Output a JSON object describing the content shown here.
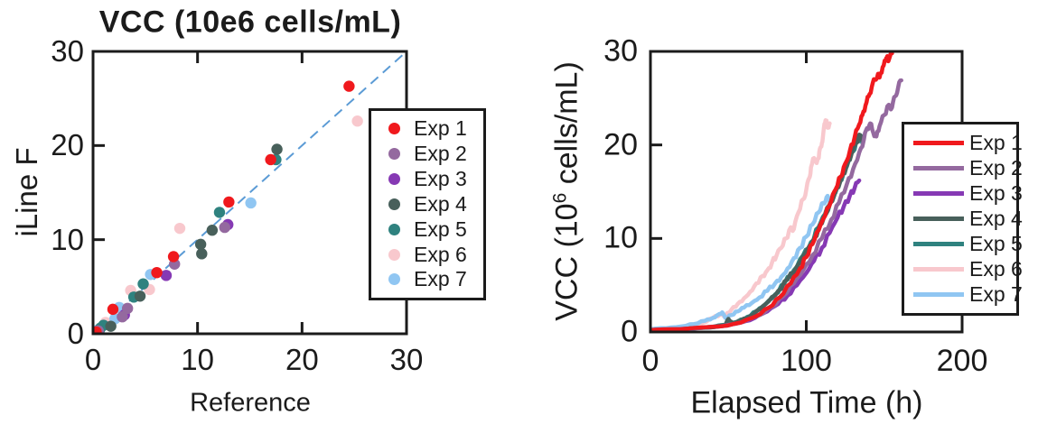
{
  "figure": {
    "background": "#ffffff",
    "ink_color": "#1b1b1b"
  },
  "chart_data": [
    {
      "type": "scatter",
      "title": "VCC (10e6 cells/mL)",
      "xlabel": "Reference",
      "ylabel": "iLine F",
      "xlim": [
        0,
        30
      ],
      "ylim": [
        0,
        30
      ],
      "xticks": [
        "0",
        "10",
        "20",
        "30"
      ],
      "yticks": [
        "0",
        "10",
        "20",
        "30"
      ],
      "xtick_values": [
        0,
        10,
        20,
        30
      ],
      "ytick_values": [
        0,
        10,
        20,
        30
      ],
      "grid": false,
      "legend_position": "right-overlapping-axis",
      "identity_line": {
        "show": true,
        "color": "#5b9bd5",
        "style": "dashed",
        "from": [
          0,
          0
        ],
        "to": [
          30,
          30
        ]
      },
      "series": [
        {
          "name": "Exp 1",
          "color": "#f0191d",
          "points": [
            [
              0.3,
              0.2
            ],
            [
              1.9,
              2.6
            ],
            [
              6.1,
              6.5
            ],
            [
              7.7,
              8.2
            ],
            [
              13.0,
              14.0
            ],
            [
              17.0,
              18.5
            ],
            [
              24.5,
              26.3
            ]
          ]
        },
        {
          "name": "Exp 2",
          "color": "#94699f",
          "points": [
            [
              0.5,
              0.3
            ],
            [
              2.8,
              1.8
            ],
            [
              3.3,
              2.7
            ],
            [
              7.8,
              7.4
            ],
            [
              12.6,
              11.3
            ]
          ]
        },
        {
          "name": "Exp 3",
          "color": "#8639b4",
          "points": [
            [
              0.6,
              0.4
            ],
            [
              3.0,
              2.0
            ],
            [
              7.0,
              6.2
            ],
            [
              12.9,
              11.6
            ]
          ]
        },
        {
          "name": "Exp 4",
          "color": "#48605b",
          "points": [
            [
              0.4,
              0.2
            ],
            [
              1.7,
              0.8
            ],
            [
              4.5,
              4.0
            ],
            [
              10.3,
              9.5
            ],
            [
              10.4,
              8.5
            ],
            [
              11.4,
              11.0
            ],
            [
              17.6,
              19.6
            ]
          ]
        },
        {
          "name": "Exp 5",
          "color": "#2f827f",
          "points": [
            [
              0.7,
              0.6
            ],
            [
              1.0,
              0.9
            ],
            [
              3.9,
              3.9
            ],
            [
              4.8,
              5.3
            ],
            [
              12.1,
              12.9
            ],
            [
              17.5,
              18.5
            ]
          ]
        },
        {
          "name": "Exp 6",
          "color": "#f8c8cd",
          "points": [
            [
              0.6,
              0.4
            ],
            [
              1.2,
              1.2
            ],
            [
              3.6,
              4.6
            ],
            [
              5.4,
              4.7
            ],
            [
              8.3,
              11.2
            ],
            [
              25.3,
              22.6
            ]
          ]
        },
        {
          "name": "Exp 7",
          "color": "#90c6f2",
          "points": [
            [
              0.2,
              0.3
            ],
            [
              0.5,
              0.4
            ],
            [
              2.1,
              1.6
            ],
            [
              2.5,
              2.8
            ],
            [
              5.5,
              6.3
            ],
            [
              15.1,
              13.9
            ]
          ]
        }
      ]
    },
    {
      "type": "line",
      "title": "",
      "xlabel": "Elapsed Time (h)",
      "ylabel_prefix": "VCC (10",
      "ylabel_sup": "6",
      "ylabel_suffix": " cells/mL)",
      "xlim": [
        0,
        200
      ],
      "ylim": [
        0,
        30
      ],
      "xticks": [
        "0",
        "100",
        "200"
      ],
      "yticks": [
        "0",
        "10",
        "20",
        "30"
      ],
      "xtick_values": [
        0,
        100,
        200
      ],
      "ytick_values": [
        0,
        10,
        20,
        30
      ],
      "grid": false,
      "legend_position": "right-overlapping-axis",
      "series": [
        {
          "name": "Exp 1",
          "color": "#f0191d",
          "points": [
            [
              0,
              0.2
            ],
            [
              20,
              0.3
            ],
            [
              45,
              0.6
            ],
            [
              58,
              1.0
            ],
            [
              68,
              1.7
            ],
            [
              76,
              2.6
            ],
            [
              83,
              3.7
            ],
            [
              90,
              5.2
            ],
            [
              96,
              6.8
            ],
            [
              100,
              8.0
            ],
            [
              104,
              9.4
            ],
            [
              108,
              10.9
            ],
            [
              112,
              12.4
            ],
            [
              116,
              14.0
            ],
            [
              119,
              15.3
            ],
            [
              122,
              16.6
            ],
            [
              125,
              18.0
            ],
            [
              128,
              19.4
            ],
            [
              131,
              20.8
            ],
            [
              134,
              22.2
            ],
            [
              136,
              23.2
            ],
            [
              138,
              24.2
            ],
            [
              140,
              25.2
            ],
            [
              142,
              26.2
            ],
            [
              144,
              27.0
            ],
            [
              146,
              27.6
            ],
            [
              147,
              27.2
            ],
            [
              149,
              28.3
            ],
            [
              151,
              29.0
            ],
            [
              152,
              29.5
            ],
            [
              153,
              29.1
            ],
            [
              155,
              29.8
            ]
          ]
        },
        {
          "name": "Exp 2",
          "color": "#94699f",
          "points": [
            [
              0,
              0.2
            ],
            [
              25,
              0.35
            ],
            [
              45,
              0.6
            ],
            [
              60,
              1.1
            ],
            [
              70,
              1.8
            ],
            [
              78,
              2.7
            ],
            [
              85,
              3.8
            ],
            [
              92,
              5.2
            ],
            [
              98,
              6.6
            ],
            [
              104,
              8.2
            ],
            [
              110,
              10.0
            ],
            [
              116,
              12.0
            ],
            [
              121,
              13.8
            ],
            [
              126,
              15.8
            ],
            [
              130,
              17.4
            ],
            [
              134,
              19.2
            ],
            [
              137,
              20.6
            ],
            [
              139,
              21.8
            ],
            [
              141,
              22.3
            ],
            [
              143,
              21.3
            ],
            [
              145,
              20.9
            ],
            [
              147,
              22.0
            ],
            [
              150,
              23.2
            ],
            [
              153,
              24.3
            ],
            [
              155,
              24.0
            ],
            [
              157,
              25.2
            ],
            [
              159,
              26.2
            ],
            [
              161,
              26.9
            ]
          ]
        },
        {
          "name": "Exp 3",
          "color": "#8639b4",
          "points": [
            [
              0,
              0.2
            ],
            [
              25,
              0.35
            ],
            [
              45,
              0.6
            ],
            [
              58,
              1.0
            ],
            [
              67,
              1.5
            ],
            [
              75,
              2.2
            ],
            [
              82,
              3.0
            ],
            [
              88,
              3.9
            ],
            [
              94,
              5.0
            ],
            [
              100,
              6.3
            ],
            [
              105,
              7.6
            ],
            [
              110,
              9.0
            ],
            [
              115,
              10.6
            ],
            [
              120,
              12.2
            ],
            [
              124,
              13.4
            ],
            [
              128,
              14.6
            ],
            [
              131,
              15.4
            ],
            [
              134,
              16.2
            ]
          ]
        },
        {
          "name": "Exp 4",
          "color": "#48605b",
          "points": [
            [
              0,
              0.2
            ],
            [
              20,
              0.3
            ],
            [
              40,
              0.5
            ],
            [
              48,
              0.7
            ],
            [
              50,
              1.4
            ],
            [
              53,
              0.9
            ],
            [
              58,
              1.2
            ],
            [
              64,
              1.7
            ],
            [
              70,
              2.4
            ],
            [
              76,
              3.3
            ],
            [
              82,
              4.4
            ],
            [
              88,
              5.6
            ],
            [
              94,
              7.0
            ],
            [
              100,
              8.6
            ],
            [
              105,
              10.0
            ],
            [
              110,
              11.6
            ],
            [
              114,
              13.0
            ],
            [
              118,
              14.6
            ],
            [
              122,
              16.2
            ],
            [
              126,
              17.8
            ],
            [
              129,
              19.0
            ],
            [
              132,
              20.2
            ],
            [
              134,
              21.1
            ],
            [
              136,
              20.5
            ]
          ]
        },
        {
          "name": "Exp 5",
          "color": "#2f827f",
          "points": [
            [
              0,
              0.2
            ],
            [
              20,
              0.3
            ],
            [
              40,
              0.55
            ],
            [
              50,
              0.8
            ],
            [
              56,
              1.1
            ],
            [
              62,
              1.6
            ],
            [
              68,
              2.2
            ],
            [
              74,
              3.0
            ],
            [
              80,
              4.0
            ],
            [
              86,
              5.2
            ],
            [
              92,
              6.6
            ],
            [
              98,
              8.2
            ],
            [
              103,
              9.6
            ],
            [
              108,
              11.2
            ],
            [
              112,
              12.6
            ],
            [
              116,
              14.0
            ],
            [
              120,
              15.5
            ],
            [
              124,
              17.0
            ],
            [
              127,
              18.2
            ],
            [
              130,
              19.3
            ],
            [
              133,
              20.4
            ],
            [
              135,
              21.0
            ],
            [
              136,
              20.2
            ],
            [
              137,
              20.7
            ]
          ]
        },
        {
          "name": "Exp 6",
          "color": "#f8c8cd",
          "points": [
            [
              0,
              0.2
            ],
            [
              10,
              0.25
            ],
            [
              20,
              0.45
            ],
            [
              28,
              0.7
            ],
            [
              34,
              1.0
            ],
            [
              40,
              1.5
            ],
            [
              45,
              1.9
            ],
            [
              48,
              1.7
            ],
            [
              52,
              2.4
            ],
            [
              56,
              3.0
            ],
            [
              60,
              3.6
            ],
            [
              64,
              4.3
            ],
            [
              68,
              5.2
            ],
            [
              72,
              6.0
            ],
            [
              75,
              6.6
            ],
            [
              78,
              7.4
            ],
            [
              81,
              8.2
            ],
            [
              84,
              9.0
            ],
            [
              87,
              10.0
            ],
            [
              90,
              11.2
            ],
            [
              92,
              11.0
            ],
            [
              95,
              12.8
            ],
            [
              98,
              14.2
            ],
            [
              100,
              15.2
            ],
            [
              102,
              16.5
            ],
            [
              103,
              17.6
            ],
            [
              105,
              18.6
            ],
            [
              106,
              18.2
            ],
            [
              108,
              18.6
            ],
            [
              109,
              19.7
            ],
            [
              110,
              20.2
            ],
            [
              111,
              21.4
            ],
            [
              112,
              22.3
            ],
            [
              113,
              22.6
            ],
            [
              114,
              21.9
            ],
            [
              115,
              22.3
            ]
          ]
        },
        {
          "name": "Exp 7",
          "color": "#90c6f2",
          "points": [
            [
              0,
              0.3
            ],
            [
              10,
              0.4
            ],
            [
              20,
              0.6
            ],
            [
              28,
              0.85
            ],
            [
              35,
              1.2
            ],
            [
              40,
              1.5
            ],
            [
              44,
              1.9
            ],
            [
              46,
              2.1
            ],
            [
              48,
              1.5
            ],
            [
              52,
              1.8
            ],
            [
              56,
              2.2
            ],
            [
              60,
              2.6
            ],
            [
              65,
              3.1
            ],
            [
              70,
              3.7
            ],
            [
              75,
              4.4
            ],
            [
              80,
              5.2
            ],
            [
              84,
              5.9
            ],
            [
              88,
              6.8
            ],
            [
              92,
              7.9
            ],
            [
              96,
              9.0
            ],
            [
              100,
              10.2
            ],
            [
              104,
              11.5
            ],
            [
              108,
              12.8
            ],
            [
              111,
              13.8
            ],
            [
              113,
              14.4
            ],
            [
              115,
              14.0
            ],
            [
              117,
              14.7
            ]
          ]
        }
      ]
    }
  ]
}
